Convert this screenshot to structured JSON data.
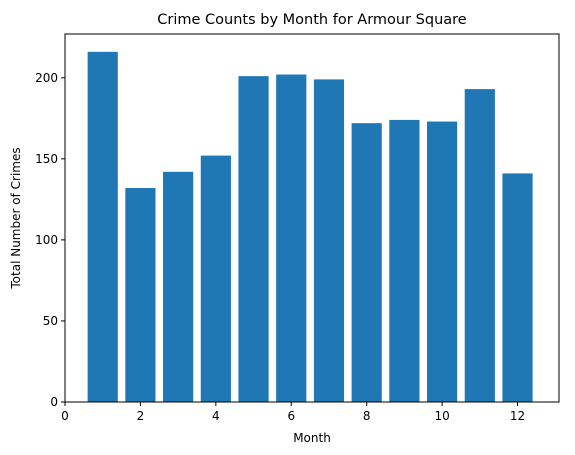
{
  "chart_data": {
    "type": "bar",
    "title": "Crime Counts by Month for Armour Square",
    "xlabel": "Month",
    "ylabel": "Total Number of Crimes",
    "x": [
      1,
      2,
      3,
      4,
      5,
      6,
      7,
      8,
      9,
      10,
      11,
      12
    ],
    "values": [
      216,
      132,
      142,
      152,
      201,
      202,
      199,
      172,
      174,
      173,
      193,
      141
    ],
    "xlim": [
      0,
      13.1
    ],
    "ylim": [
      0,
      227
    ],
    "xticks": [
      0,
      2,
      4,
      6,
      8,
      10,
      12
    ],
    "yticks": [
      0,
      50,
      100,
      150,
      200
    ],
    "grid": false,
    "bar_color": "#1f77b4"
  }
}
